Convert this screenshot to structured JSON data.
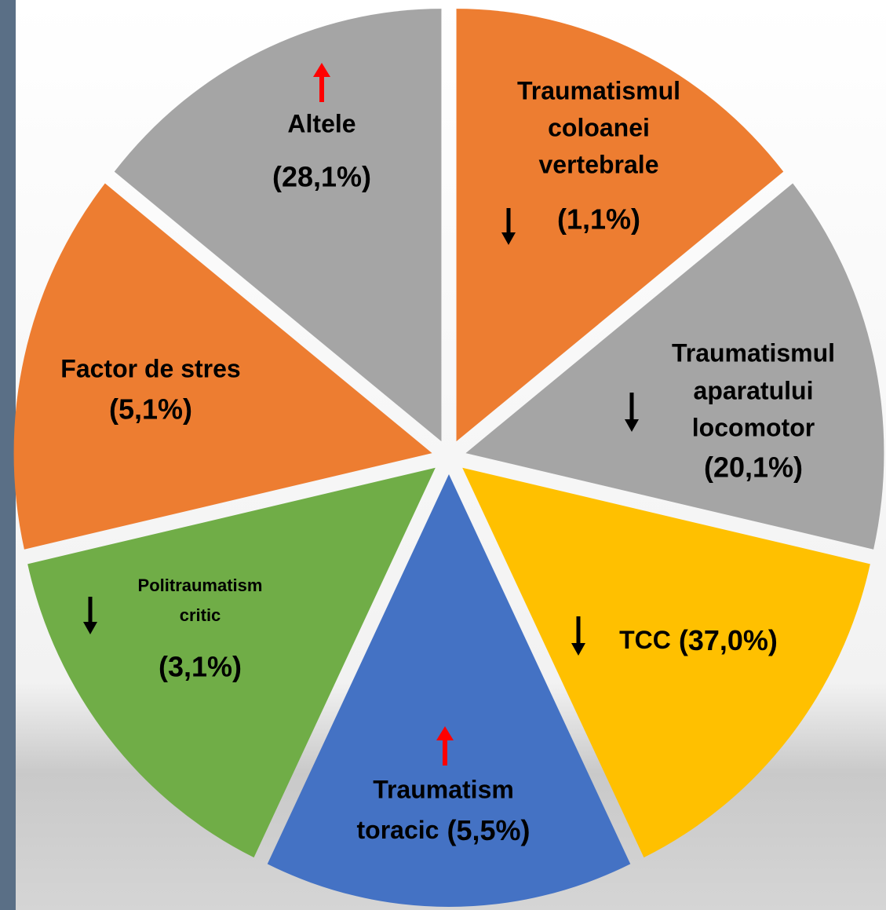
{
  "segments": [
    {
      "label": [
        "Traumatismul",
        "coloanei",
        "vertebrale"
      ],
      "value": "(1,1%)",
      "color": "#ed7d31"
    },
    {
      "label": [
        "Traumatismul",
        "aparatului",
        "locomotor"
      ],
      "value": "(20,1%)",
      "color": "#a5a5a5"
    },
    {
      "label": [
        "TCC"
      ],
      "value": "(37,0%)",
      "color": "#ffc000"
    },
    {
      "label": [
        "Traumatism",
        "toracic"
      ],
      "value": "(5,5%)",
      "color": "#4472c4"
    },
    {
      "label": [
        "Politraumatism",
        "critic"
      ],
      "value": "(3,1%)",
      "color": "#70ad47"
    },
    {
      "label": [
        "Factor de stres"
      ],
      "value": "(5,1%)",
      "color": "#ed7d31"
    },
    {
      "label": [
        "Altele"
      ],
      "value": "(28,1%)",
      "color": "#a5a5a5"
    }
  ]
}
